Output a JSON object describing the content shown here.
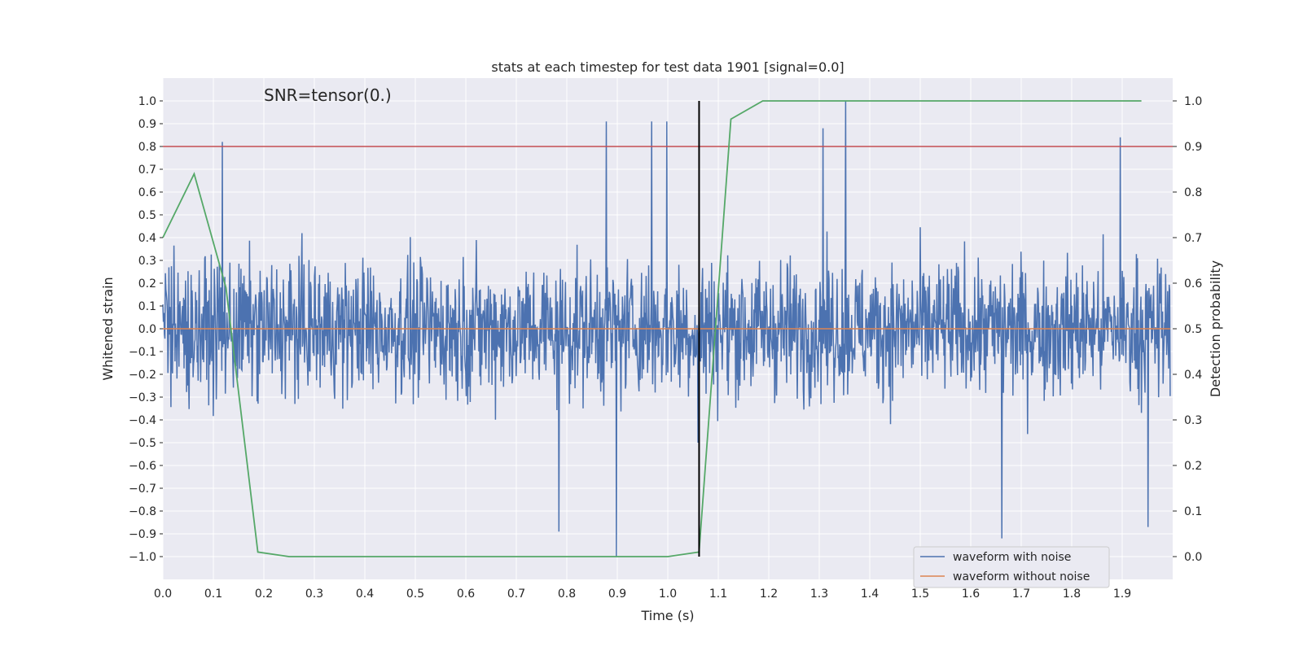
{
  "chart_data": {
    "type": "line",
    "title": "stats at each timestep for test data 1901 [signal=0.0]",
    "xlabel": "Time (s)",
    "ylabel": "Whitened strain",
    "y2label": "Detection probability",
    "annotation": "SNR=tensor(0.)",
    "xlim": [
      0.0,
      1.995
    ],
    "ylim": [
      -1.1,
      1.1
    ],
    "y2lim": [
      -0.05,
      1.05
    ],
    "x_ticks": [
      "0.0",
      "0.1",
      "0.2",
      "0.3",
      "0.4",
      "0.5",
      "0.6",
      "0.7",
      "0.8",
      "0.9",
      "1.0",
      "1.1",
      "1.2",
      "1.3",
      "1.4",
      "1.5",
      "1.6",
      "1.7",
      "1.8",
      "1.9"
    ],
    "y_ticks": [
      "1.0",
      "0.9",
      "0.8",
      "0.7",
      "0.6",
      "0.5",
      "0.4",
      "0.3",
      "0.2",
      "0.1",
      "0.0",
      "−0.1",
      "−0.2",
      "−0.3",
      "−0.4",
      "−0.5",
      "−0.6",
      "−0.7",
      "−0.8",
      "−0.9",
      "−1.0"
    ],
    "y2_ticks": [
      "1.0",
      "0.9",
      "0.8",
      "0.7",
      "0.6",
      "0.5",
      "0.4",
      "0.3",
      "0.2",
      "0.1",
      "0.0"
    ],
    "grid": true,
    "legend_position": "bottom-right",
    "series": [
      {
        "name": "waveform with noise",
        "color": "#4c72b0",
        "axis": "left",
        "description": "whitened noisy strain, ~2000 samples, peaks: 0.82@0.118, 0.91@0.88, 0.91@0.97, 0.91@1.0, 0.88@1.31, 1.0@1.355, 0.84@1.9, -1.0@0.9, -0.92@1.665, -0.89@0.786, -0.87@1.955",
        "n_samples": 2000,
        "std": 0.3
      },
      {
        "name": "waveform without noise",
        "color": "#dd8452",
        "axis": "left",
        "x": [
          0.0,
          1.995
        ],
        "y": [
          0.0,
          0.0
        ]
      },
      {
        "name": "detection probability",
        "color": "#55a868",
        "axis": "right",
        "x": [
          0.0,
          0.062,
          0.125,
          0.188,
          0.25,
          0.312,
          0.375,
          0.438,
          0.5,
          0.562,
          0.625,
          0.688,
          0.75,
          0.812,
          0.875,
          0.938,
          1.0,
          1.062,
          1.125,
          1.188,
          1.25,
          1.312,
          1.375,
          1.438,
          1.5,
          1.562,
          1.625,
          1.688,
          1.75,
          1.812,
          1.875,
          1.938
        ],
        "y": [
          0.7,
          0.84,
          0.59,
          0.01,
          0.0,
          0.0,
          0.0,
          0.0,
          0.0,
          0.0,
          0.0,
          0.0,
          0.0,
          0.0,
          0.0,
          0.0,
          0.0,
          0.01,
          0.96,
          1.0,
          1.0,
          1.0,
          1.0,
          1.0,
          1.0,
          1.0,
          1.0,
          1.0,
          1.0,
          1.0,
          1.0,
          1.0
        ]
      }
    ],
    "threshold": {
      "y": 0.8,
      "color": "#c44e52"
    },
    "vline": {
      "x": 1.062,
      "ymin": -1.0,
      "ymax": 1.0,
      "color": "#000000"
    }
  }
}
